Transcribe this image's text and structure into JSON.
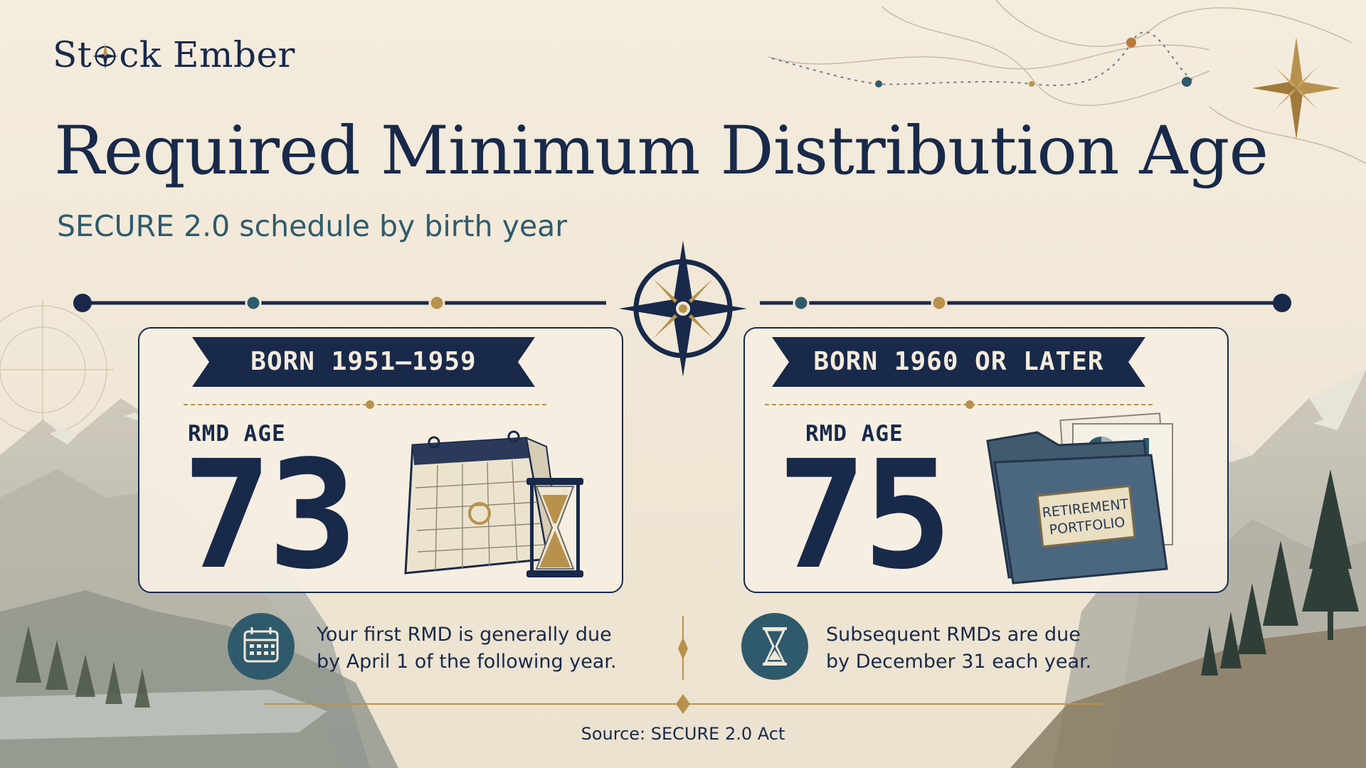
{
  "brand": {
    "logo_prefix": "St",
    "logo_suffix": "ck Ember",
    "logo_icon": "compass-icon"
  },
  "header": {
    "title": "Required Minimum Distribution Age",
    "subtitle": "SECURE 2.0 schedule by birth year"
  },
  "cards": [
    {
      "banner": "BORN 1951–1959",
      "label": "RMD AGE",
      "age": "73",
      "illustration": "calendar-hourglass-icon"
    },
    {
      "banner": "BORN 1960 OR LATER",
      "label": "RMD AGE",
      "age": "75",
      "illustration": "retirement-portfolio-folder-icon",
      "folder_label_line1": "RETIREMENT",
      "folder_label_line2": "PORTFOLIO"
    }
  ],
  "notes": [
    {
      "icon": "calendar-icon",
      "line1": "Your first RMD is generally due",
      "line2": "by April 1 of the following year."
    },
    {
      "icon": "hourglass-icon",
      "line1": "Subsequent RMDs are due",
      "line2": "by December 31 each year."
    }
  ],
  "footer": {
    "source": "Source:  SECURE 2.0 Act"
  },
  "colors": {
    "navy": "#18294a",
    "teal": "#2f5a6c",
    "gold": "#b89050",
    "parchment": "#f1e8d8"
  }
}
